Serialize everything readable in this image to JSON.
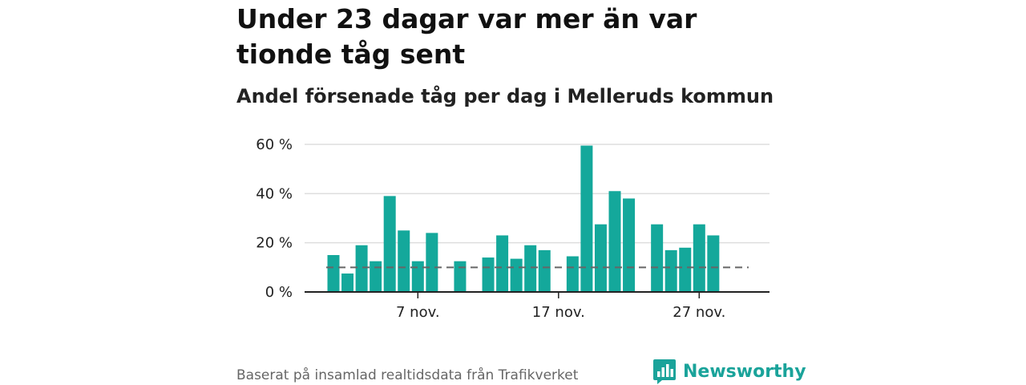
{
  "title": "Under 23 dagar var mer än var tionde tåg sent",
  "subtitle": "Andel försenade tåg per dag i Melleruds kommun",
  "footer": "Baserat på insamlad realtidsdata från Trafikverket",
  "logo": {
    "text": "Newsworthy",
    "icon": "newsworthy-chart-icon"
  },
  "colors": {
    "bar": "#14a89b",
    "reference_line": "#666666",
    "grid": "#dddddd",
    "axis": "#222222",
    "brand": "#1aa39a"
  },
  "chart_data": {
    "type": "bar",
    "x_unit": "date",
    "x": [
      "2023-11-01",
      "2023-11-02",
      "2023-11-03",
      "2023-11-04",
      "2023-11-05",
      "2023-11-06",
      "2023-11-07",
      "2023-11-08",
      "2023-11-09",
      "2023-11-10",
      "2023-11-11",
      "2023-11-12",
      "2023-11-13",
      "2023-11-14",
      "2023-11-15",
      "2023-11-16",
      "2023-11-17",
      "2023-11-18",
      "2023-11-19",
      "2023-11-20",
      "2023-11-21",
      "2023-11-22",
      "2023-11-23",
      "2023-11-24",
      "2023-11-25",
      "2023-11-26",
      "2023-11-27",
      "2023-11-28",
      "2023-11-29",
      "2023-11-30"
    ],
    "values": [
      15,
      7.5,
      19,
      12.5,
      39,
      25,
      12.5,
      24,
      null,
      12.5,
      null,
      14,
      23,
      13.5,
      19,
      17,
      null,
      14.5,
      59.5,
      27.5,
      41,
      38,
      null,
      27.5,
      17,
      18,
      27.5,
      23,
      null,
      null
    ],
    "yticks": [
      0,
      20,
      40,
      60
    ],
    "ytick_labels": [
      "0 %",
      "20 %",
      "40 %",
      "60 %"
    ],
    "xticks": [
      "2023-11-07",
      "2023-11-17",
      "2023-11-27"
    ],
    "xtick_labels": [
      "7 nov.",
      "17 nov.",
      "27 nov."
    ],
    "ylim": [
      0,
      60
    ],
    "reference_line": {
      "value": 10,
      "style": "dashed"
    },
    "grid": true
  }
}
